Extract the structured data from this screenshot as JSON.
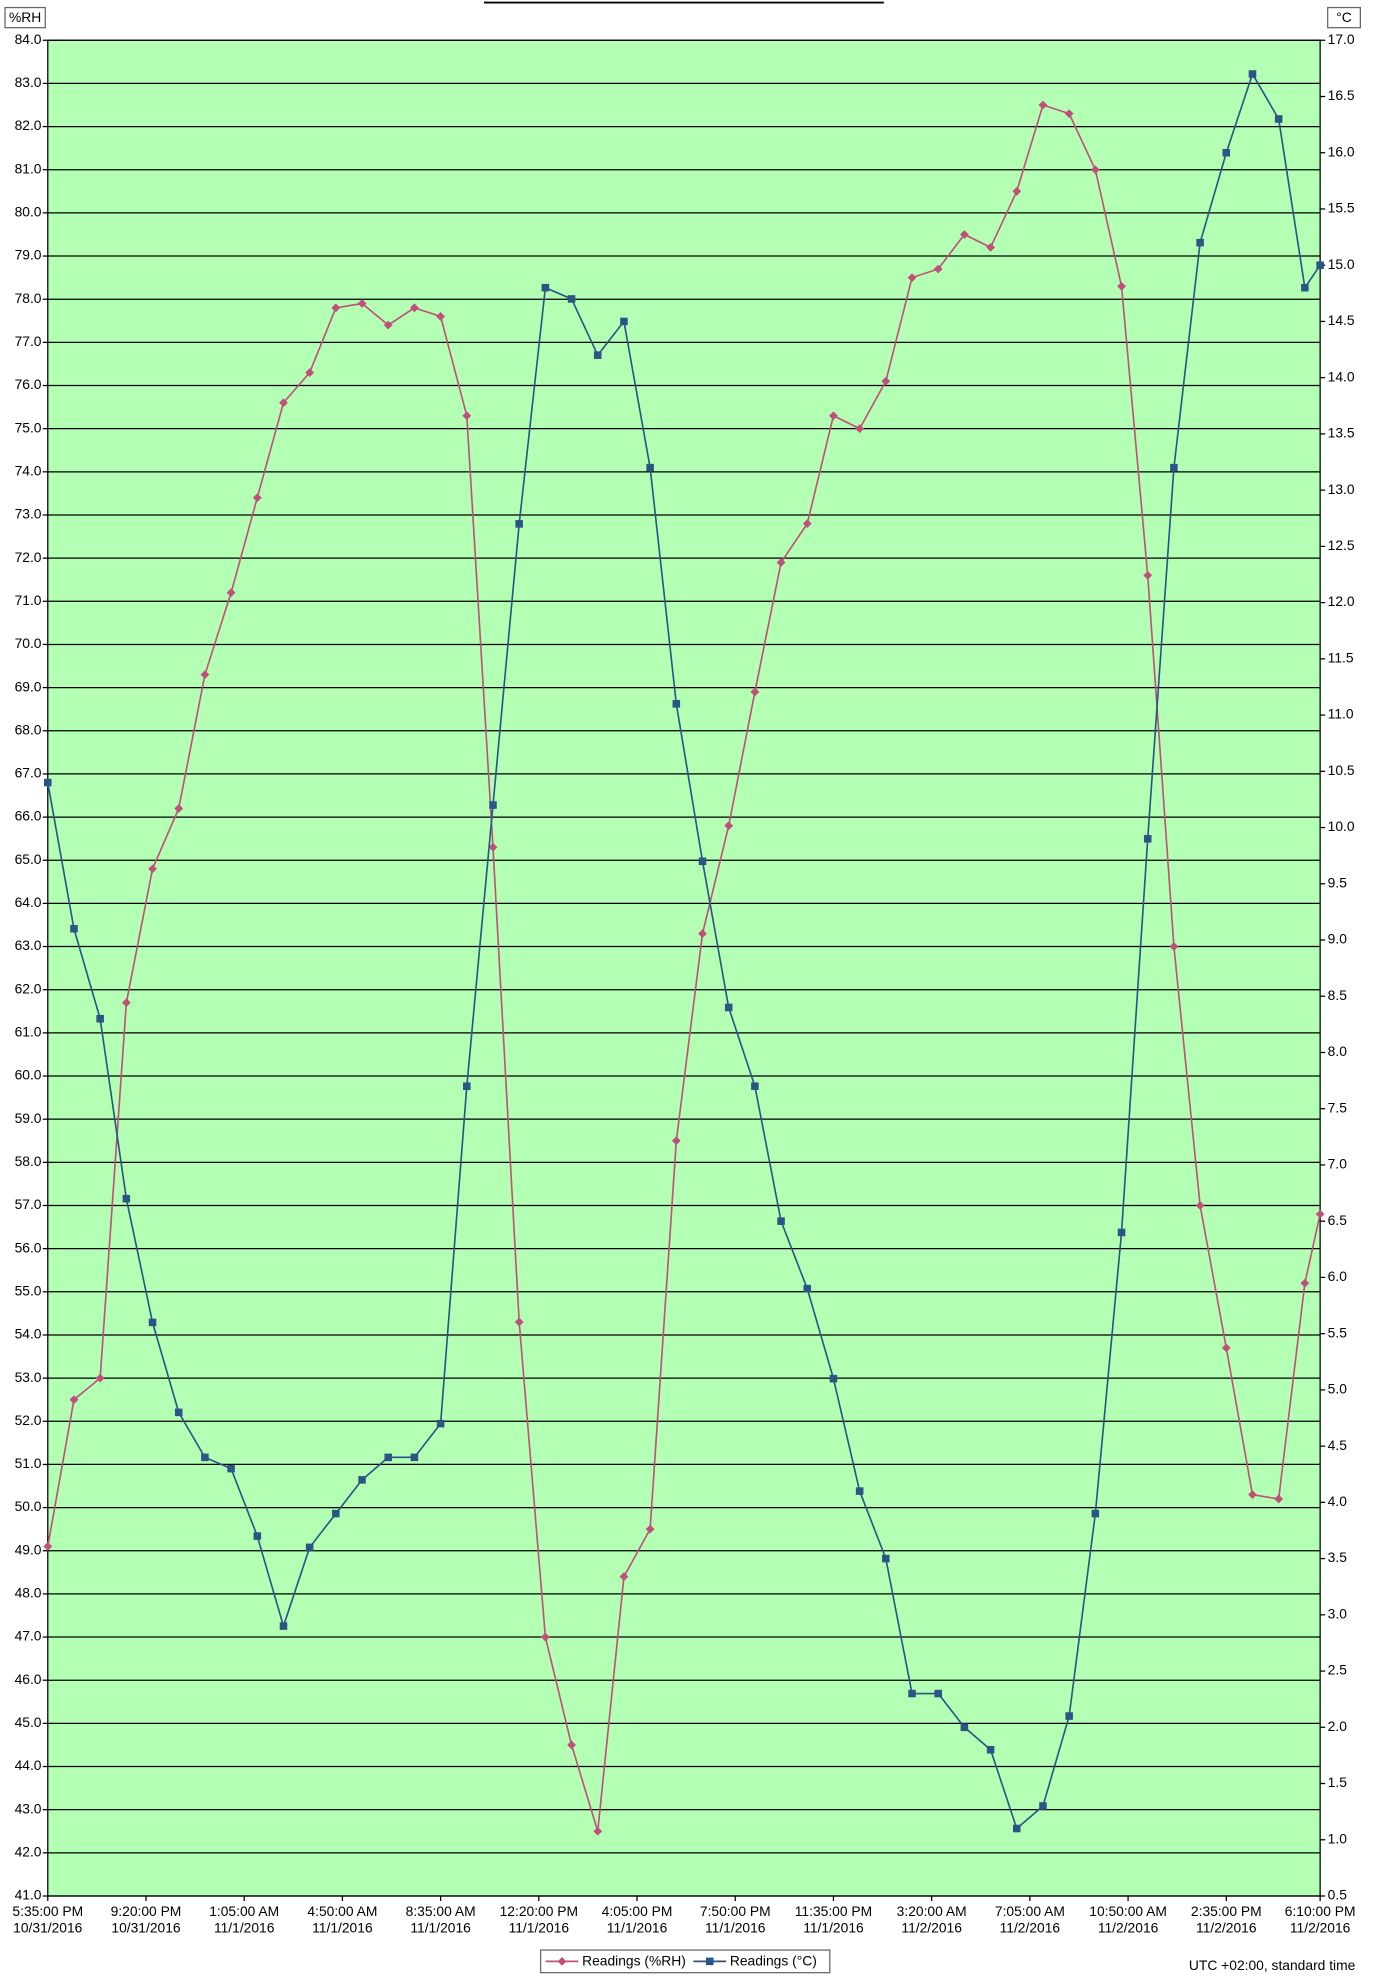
{
  "chart_data": {
    "type": "line",
    "y_unit": "%RH",
    "y2_unit": "°C",
    "footnote": "UTC +02:00, standard time",
    "background": "#b3ffb3",
    "grid": true,
    "legend": "bottom",
    "x": [
      "10/31/2016 5:35:00 PM",
      "10/31/2016 6:35:00 PM",
      "10/31/2016 7:35:00 PM",
      "10/31/2016 8:35:00 PM",
      "10/31/2016 9:35:00 PM",
      "10/31/2016 10:35:00 PM",
      "10/31/2016 11:35:00 PM",
      "11/1/2016 12:35:00 AM",
      "11/1/2016 1:35:00 AM",
      "11/1/2016 2:35:00 AM",
      "11/1/2016 3:35:00 AM",
      "11/1/2016 4:35:00 AM",
      "11/1/2016 5:35:00 AM",
      "11/1/2016 6:35:00 AM",
      "11/1/2016 7:35:00 AM",
      "11/1/2016 8:35:00 AM",
      "11/1/2016 9:35:00 AM",
      "11/1/2016 10:35:00 AM",
      "11/1/2016 11:35:00 AM",
      "11/1/2016 12:35:00 PM",
      "11/1/2016 1:35:00 PM",
      "11/1/2016 2:35:00 PM",
      "11/1/2016 3:35:00 PM",
      "11/1/2016 4:35:00 PM",
      "11/1/2016 5:35:00 PM",
      "11/1/2016 6:35:00 PM",
      "11/1/2016 7:35:00 PM",
      "11/1/2016 8:35:00 PM",
      "11/1/2016 9:35:00 PM",
      "11/1/2016 10:35:00 PM",
      "11/1/2016 11:35:00 PM",
      "11/2/2016 12:35:00 AM",
      "11/2/2016 1:35:00 AM",
      "11/2/2016 2:35:00 AM",
      "11/2/2016 3:35:00 AM",
      "11/2/2016 4:35:00 AM",
      "11/2/2016 5:35:00 AM",
      "11/2/2016 6:35:00 AM",
      "11/2/2016 7:35:00 AM",
      "11/2/2016 8:35:00 AM",
      "11/2/2016 9:35:00 AM",
      "11/2/2016 10:35:00 AM",
      "11/2/2016 11:35:00 AM",
      "11/2/2016 12:35:00 PM",
      "11/2/2016 1:35:00 PM",
      "11/2/2016 2:35:00 PM",
      "11/2/2016 3:35:00 PM",
      "11/2/2016 4:35:00 PM",
      "11/2/2016 5:35:00 PM",
      "11/2/2016 6:10:00 PM"
    ],
    "series": [
      {
        "name": "Readings (%RH)",
        "color": "#c0507a",
        "values": [
          49.1,
          52.5,
          53.0,
          61.7,
          64.8,
          66.2,
          69.3,
          71.2,
          73.4,
          75.6,
          76.3,
          77.8,
          77.9,
          77.4,
          77.8,
          77.6,
          75.3,
          65.3,
          54.3,
          47.0,
          44.5,
          42.5,
          48.4,
          49.5,
          58.5,
          63.3,
          65.8,
          68.9,
          71.9,
          72.8,
          75.3,
          75.0,
          76.1,
          78.5,
          78.7,
          79.5,
          79.2,
          80.5,
          82.5,
          82.3,
          81.0,
          78.3,
          71.6,
          63.0,
          57.0,
          53.7,
          50.3,
          50.2,
          55.2,
          56.8
        ]
      },
      {
        "name": "Readings (°C)",
        "color": "#2a5585",
        "axis": "y2",
        "values": [
          10.4,
          9.1,
          8.3,
          6.7,
          5.6,
          4.8,
          4.4,
          4.3,
          3.7,
          2.9,
          3.6,
          3.9,
          4.2,
          4.4,
          4.4,
          4.7,
          7.7,
          10.2,
          12.7,
          14.8,
          14.7,
          14.2,
          14.5,
          13.2,
          11.1,
          9.7,
          8.4,
          7.7,
          6.5,
          5.9,
          5.1,
          4.1,
          3.5,
          2.3,
          2.3,
          2.0,
          1.8,
          1.1,
          1.3,
          2.1,
          3.9,
          6.4,
          9.9,
          13.2,
          15.2,
          16.0,
          16.7,
          16.3,
          14.8,
          15.0
        ]
      }
    ],
    "xlim": [
      "10/31/2016 5:35:00 PM",
      "11/2/2016 6:10:00 PM"
    ],
    "xticks": [
      {
        "value": "10/31/2016 5:35:00 PM",
        "label": [
          "5:35:00 PM",
          "10/31/2016"
        ]
      },
      {
        "value": "10/31/2016 9:20:00 PM",
        "label": [
          "9:20:00 PM",
          "10/31/2016"
        ]
      },
      {
        "value": "11/1/2016 1:05:00 AM",
        "label": [
          "1:05:00 AM",
          "11/1/2016"
        ]
      },
      {
        "value": "11/1/2016 4:50:00 AM",
        "label": [
          "4:50:00 AM",
          "11/1/2016"
        ]
      },
      {
        "value": "11/1/2016 8:35:00 AM",
        "label": [
          "8:35:00 AM",
          "11/1/2016"
        ]
      },
      {
        "value": "11/1/2016 12:20:00 PM",
        "label": [
          "12:20:00 PM",
          "11/1/2016"
        ]
      },
      {
        "value": "11/1/2016 4:05:00 PM",
        "label": [
          "4:05:00 PM",
          "11/1/2016"
        ]
      },
      {
        "value": "11/1/2016 7:50:00 PM",
        "label": [
          "7:50:00 PM",
          "11/1/2016"
        ]
      },
      {
        "value": "11/1/2016 11:35:00 PM",
        "label": [
          "11:35:00 PM",
          "11/1/2016"
        ]
      },
      {
        "value": "11/2/2016 3:20:00 AM",
        "label": [
          "3:20:00 AM",
          "11/2/2016"
        ]
      },
      {
        "value": "11/2/2016 7:05:00 AM",
        "label": [
          "7:05:00 AM",
          "11/2/2016"
        ]
      },
      {
        "value": "11/2/2016 10:50:00 AM",
        "label": [
          "10:50:00 AM",
          "11/2/2016"
        ]
      },
      {
        "value": "11/2/2016 2:35:00 PM",
        "label": [
          "2:35:00 PM",
          "11/2/2016"
        ]
      },
      {
        "value": "11/2/2016 6:10:00 PM",
        "label": [
          "6:10:00 PM",
          "11/2/2016"
        ]
      }
    ],
    "ylim": [
      41,
      84
    ],
    "yticks": [
      {
        "value": 41,
        "label": "41.0"
      },
      {
        "value": 42,
        "label": "42.0"
      },
      {
        "value": 43,
        "label": "43.0"
      },
      {
        "value": 44,
        "label": "44.0"
      },
      {
        "value": 45,
        "label": "45.0"
      },
      {
        "value": 46,
        "label": "46.0"
      },
      {
        "value": 47,
        "label": "47.0"
      },
      {
        "value": 48,
        "label": "48.0"
      },
      {
        "value": 49,
        "label": "49.0"
      },
      {
        "value": 50,
        "label": "50.0"
      },
      {
        "value": 51,
        "label": "51.0"
      },
      {
        "value": 52,
        "label": "52.0"
      },
      {
        "value": 53,
        "label": "53.0"
      },
      {
        "value": 54,
        "label": "54.0"
      },
      {
        "value": 55,
        "label": "55.0"
      },
      {
        "value": 56,
        "label": "56.0"
      },
      {
        "value": 57,
        "label": "57.0"
      },
      {
        "value": 58,
        "label": "58.0"
      },
      {
        "value": 59,
        "label": "59.0"
      },
      {
        "value": 60,
        "label": "60.0"
      },
      {
        "value": 61,
        "label": "61.0"
      },
      {
        "value": 62,
        "label": "62.0"
      },
      {
        "value": 63,
        "label": "63.0"
      },
      {
        "value": 64,
        "label": "64.0"
      },
      {
        "value": 65,
        "label": "65.0"
      },
      {
        "value": 66,
        "label": "66.0"
      },
      {
        "value": 67,
        "label": "67.0"
      },
      {
        "value": 68,
        "label": "68.0"
      },
      {
        "value": 69,
        "label": "69.0"
      },
      {
        "value": 70,
        "label": "70.0"
      },
      {
        "value": 71,
        "label": "71.0"
      },
      {
        "value": 72,
        "label": "72.0"
      },
      {
        "value": 73,
        "label": "73.0"
      },
      {
        "value": 74,
        "label": "74.0"
      },
      {
        "value": 75,
        "label": "75.0"
      },
      {
        "value": 76,
        "label": "76.0"
      },
      {
        "value": 77,
        "label": "77.0"
      },
      {
        "value": 78,
        "label": "78.0"
      },
      {
        "value": 79,
        "label": "79.0"
      },
      {
        "value": 80,
        "label": "80.0"
      },
      {
        "value": 81,
        "label": "81.0"
      },
      {
        "value": 82,
        "label": "82.0"
      },
      {
        "value": 83,
        "label": "83.0"
      },
      {
        "value": 84,
        "label": "84.0"
      }
    ],
    "y2lim": [
      0.5,
      17
    ],
    "y2ticks": [
      0.5,
      {
        "value": 1,
        "label": "1.0"
      },
      1.5,
      {
        "value": 2,
        "label": "2.0"
      },
      2.5,
      {
        "value": 3,
        "label": "3.0"
      },
      3.5,
      {
        "value": 4,
        "label": "4.0"
      },
      4.5,
      {
        "value": 5,
        "label": "5.0"
      },
      5.5,
      {
        "value": 6,
        "label": "6.0"
      },
      6.5,
      {
        "value": 7,
        "label": "7.0"
      },
      7.5,
      {
        "value": 8,
        "label": "8.0"
      },
      8.5,
      {
        "value": 9,
        "label": "9.0"
      },
      9.5,
      {
        "value": 10,
        "label": "10.0"
      },
      10.5,
      {
        "value": 11,
        "label": "11.0"
      },
      11.5,
      {
        "value": 12,
        "label": "12.0"
      },
      12.5,
      {
        "value": 13,
        "label": "13.0"
      },
      13.5,
      {
        "value": 14,
        "label": "14.0"
      },
      14.5,
      {
        "value": 15,
        "label": "15.0"
      },
      15.5,
      {
        "value": 16,
        "label": "16.0"
      },
      16.5,
      {
        "value": 17,
        "label": "17.0"
      }
    ]
  }
}
